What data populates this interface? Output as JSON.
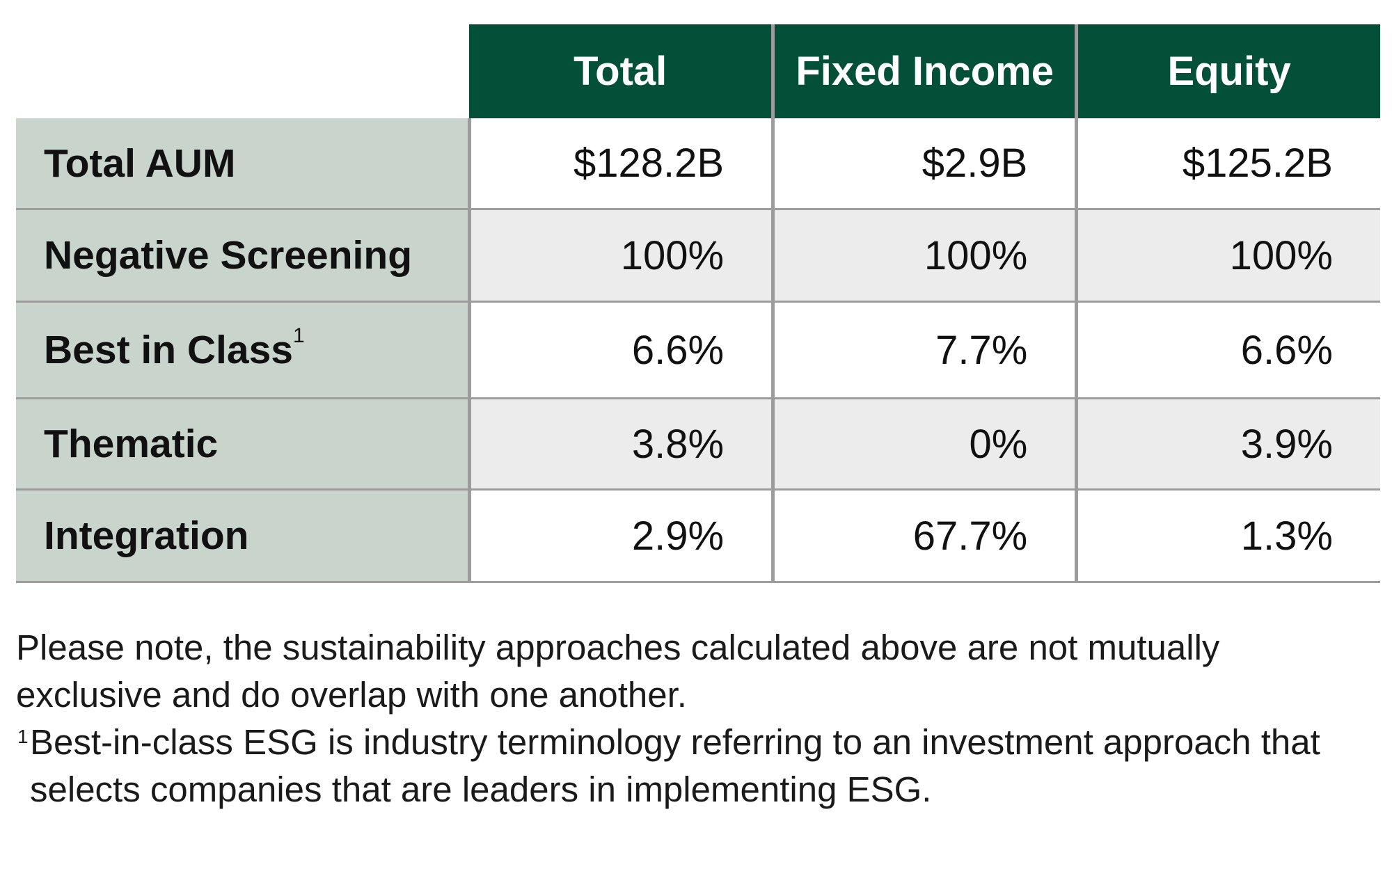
{
  "chart_data": {
    "type": "table",
    "columns": [
      "Total",
      "Fixed Income",
      "Equity"
    ],
    "rows": [
      {
        "label": "Total AUM",
        "footnote": "",
        "values": [
          "$128.2B",
          "$2.9B",
          "$125.2B"
        ]
      },
      {
        "label": "Negative Screening",
        "footnote": "",
        "values": [
          "100%",
          "100%",
          "100%"
        ]
      },
      {
        "label": "Best in Class",
        "footnote": "1",
        "values": [
          "6.6%",
          "7.7%",
          "6.6%"
        ]
      },
      {
        "label": "Thematic",
        "footnote": "",
        "values": [
          "3.8%",
          "0%",
          "3.9%"
        ]
      },
      {
        "label": "Integration",
        "footnote": "",
        "values": [
          "2.9%",
          "67.7%",
          "1.3%"
        ]
      }
    ],
    "colors": {
      "header_bg": "#034f38",
      "label_bg": "#c9d4cc",
      "shaded_row_bg": "#ececec",
      "grid": "#9c9c9c"
    }
  },
  "notes": {
    "note": "Please note, the sustainability approaches calculated above are not mutually exclusive and do overlap with one another.",
    "footnote_marker": "1",
    "footnote": "Best-in-class ESG is industry terminology referring to an investment approach that selects companies that are leaders in implementing ESG."
  }
}
